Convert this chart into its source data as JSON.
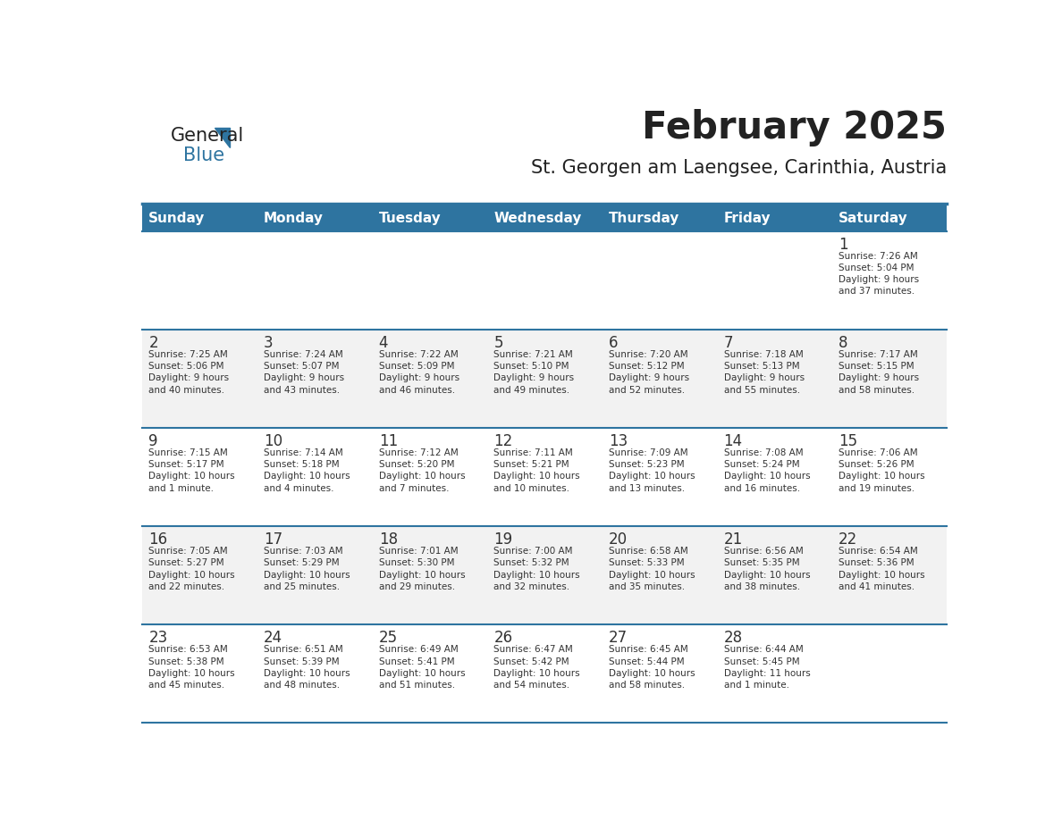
{
  "title": "February 2025",
  "subtitle": "St. Georgen am Laengsee, Carinthia, Austria",
  "days_of_week": [
    "Sunday",
    "Monday",
    "Tuesday",
    "Wednesday",
    "Thursday",
    "Friday",
    "Saturday"
  ],
  "header_bg": "#2E74A0",
  "header_text": "#FFFFFF",
  "row_bg_even": "#FFFFFF",
  "row_bg_odd": "#F2F2F2",
  "cell_border": "#2E74A0",
  "day_num_color": "#333333",
  "day_text_color": "#333333",
  "title_color": "#222222",
  "subtitle_color": "#222222",
  "logo_general_color": "#222222",
  "logo_blue_color": "#2E74A0",
  "calendar_data": [
    [
      null,
      null,
      null,
      null,
      null,
      null,
      {
        "day": 1,
        "sunrise": "7:26 AM",
        "sunset": "5:04 PM",
        "daylight": "9 hours\nand 37 minutes."
      }
    ],
    [
      {
        "day": 2,
        "sunrise": "7:25 AM",
        "sunset": "5:06 PM",
        "daylight": "9 hours\nand 40 minutes."
      },
      {
        "day": 3,
        "sunrise": "7:24 AM",
        "sunset": "5:07 PM",
        "daylight": "9 hours\nand 43 minutes."
      },
      {
        "day": 4,
        "sunrise": "7:22 AM",
        "sunset": "5:09 PM",
        "daylight": "9 hours\nand 46 minutes."
      },
      {
        "day": 5,
        "sunrise": "7:21 AM",
        "sunset": "5:10 PM",
        "daylight": "9 hours\nand 49 minutes."
      },
      {
        "day": 6,
        "sunrise": "7:20 AM",
        "sunset": "5:12 PM",
        "daylight": "9 hours\nand 52 minutes."
      },
      {
        "day": 7,
        "sunrise": "7:18 AM",
        "sunset": "5:13 PM",
        "daylight": "9 hours\nand 55 minutes."
      },
      {
        "day": 8,
        "sunrise": "7:17 AM",
        "sunset": "5:15 PM",
        "daylight": "9 hours\nand 58 minutes."
      }
    ],
    [
      {
        "day": 9,
        "sunrise": "7:15 AM",
        "sunset": "5:17 PM",
        "daylight": "10 hours\nand 1 minute."
      },
      {
        "day": 10,
        "sunrise": "7:14 AM",
        "sunset": "5:18 PM",
        "daylight": "10 hours\nand 4 minutes."
      },
      {
        "day": 11,
        "sunrise": "7:12 AM",
        "sunset": "5:20 PM",
        "daylight": "10 hours\nand 7 minutes."
      },
      {
        "day": 12,
        "sunrise": "7:11 AM",
        "sunset": "5:21 PM",
        "daylight": "10 hours\nand 10 minutes."
      },
      {
        "day": 13,
        "sunrise": "7:09 AM",
        "sunset": "5:23 PM",
        "daylight": "10 hours\nand 13 minutes."
      },
      {
        "day": 14,
        "sunrise": "7:08 AM",
        "sunset": "5:24 PM",
        "daylight": "10 hours\nand 16 minutes."
      },
      {
        "day": 15,
        "sunrise": "7:06 AM",
        "sunset": "5:26 PM",
        "daylight": "10 hours\nand 19 minutes."
      }
    ],
    [
      {
        "day": 16,
        "sunrise": "7:05 AM",
        "sunset": "5:27 PM",
        "daylight": "10 hours\nand 22 minutes."
      },
      {
        "day": 17,
        "sunrise": "7:03 AM",
        "sunset": "5:29 PM",
        "daylight": "10 hours\nand 25 minutes."
      },
      {
        "day": 18,
        "sunrise": "7:01 AM",
        "sunset": "5:30 PM",
        "daylight": "10 hours\nand 29 minutes."
      },
      {
        "day": 19,
        "sunrise": "7:00 AM",
        "sunset": "5:32 PM",
        "daylight": "10 hours\nand 32 minutes."
      },
      {
        "day": 20,
        "sunrise": "6:58 AM",
        "sunset": "5:33 PM",
        "daylight": "10 hours\nand 35 minutes."
      },
      {
        "day": 21,
        "sunrise": "6:56 AM",
        "sunset": "5:35 PM",
        "daylight": "10 hours\nand 38 minutes."
      },
      {
        "day": 22,
        "sunrise": "6:54 AM",
        "sunset": "5:36 PM",
        "daylight": "10 hours\nand 41 minutes."
      }
    ],
    [
      {
        "day": 23,
        "sunrise": "6:53 AM",
        "sunset": "5:38 PM",
        "daylight": "10 hours\nand 45 minutes."
      },
      {
        "day": 24,
        "sunrise": "6:51 AM",
        "sunset": "5:39 PM",
        "daylight": "10 hours\nand 48 minutes."
      },
      {
        "day": 25,
        "sunrise": "6:49 AM",
        "sunset": "5:41 PM",
        "daylight": "10 hours\nand 51 minutes."
      },
      {
        "day": 26,
        "sunrise": "6:47 AM",
        "sunset": "5:42 PM",
        "daylight": "10 hours\nand 54 minutes."
      },
      {
        "day": 27,
        "sunrise": "6:45 AM",
        "sunset": "5:44 PM",
        "daylight": "10 hours\nand 58 minutes."
      },
      {
        "day": 28,
        "sunrise": "6:44 AM",
        "sunset": "5:45 PM",
        "daylight": "11 hours\nand 1 minute."
      },
      null
    ]
  ]
}
